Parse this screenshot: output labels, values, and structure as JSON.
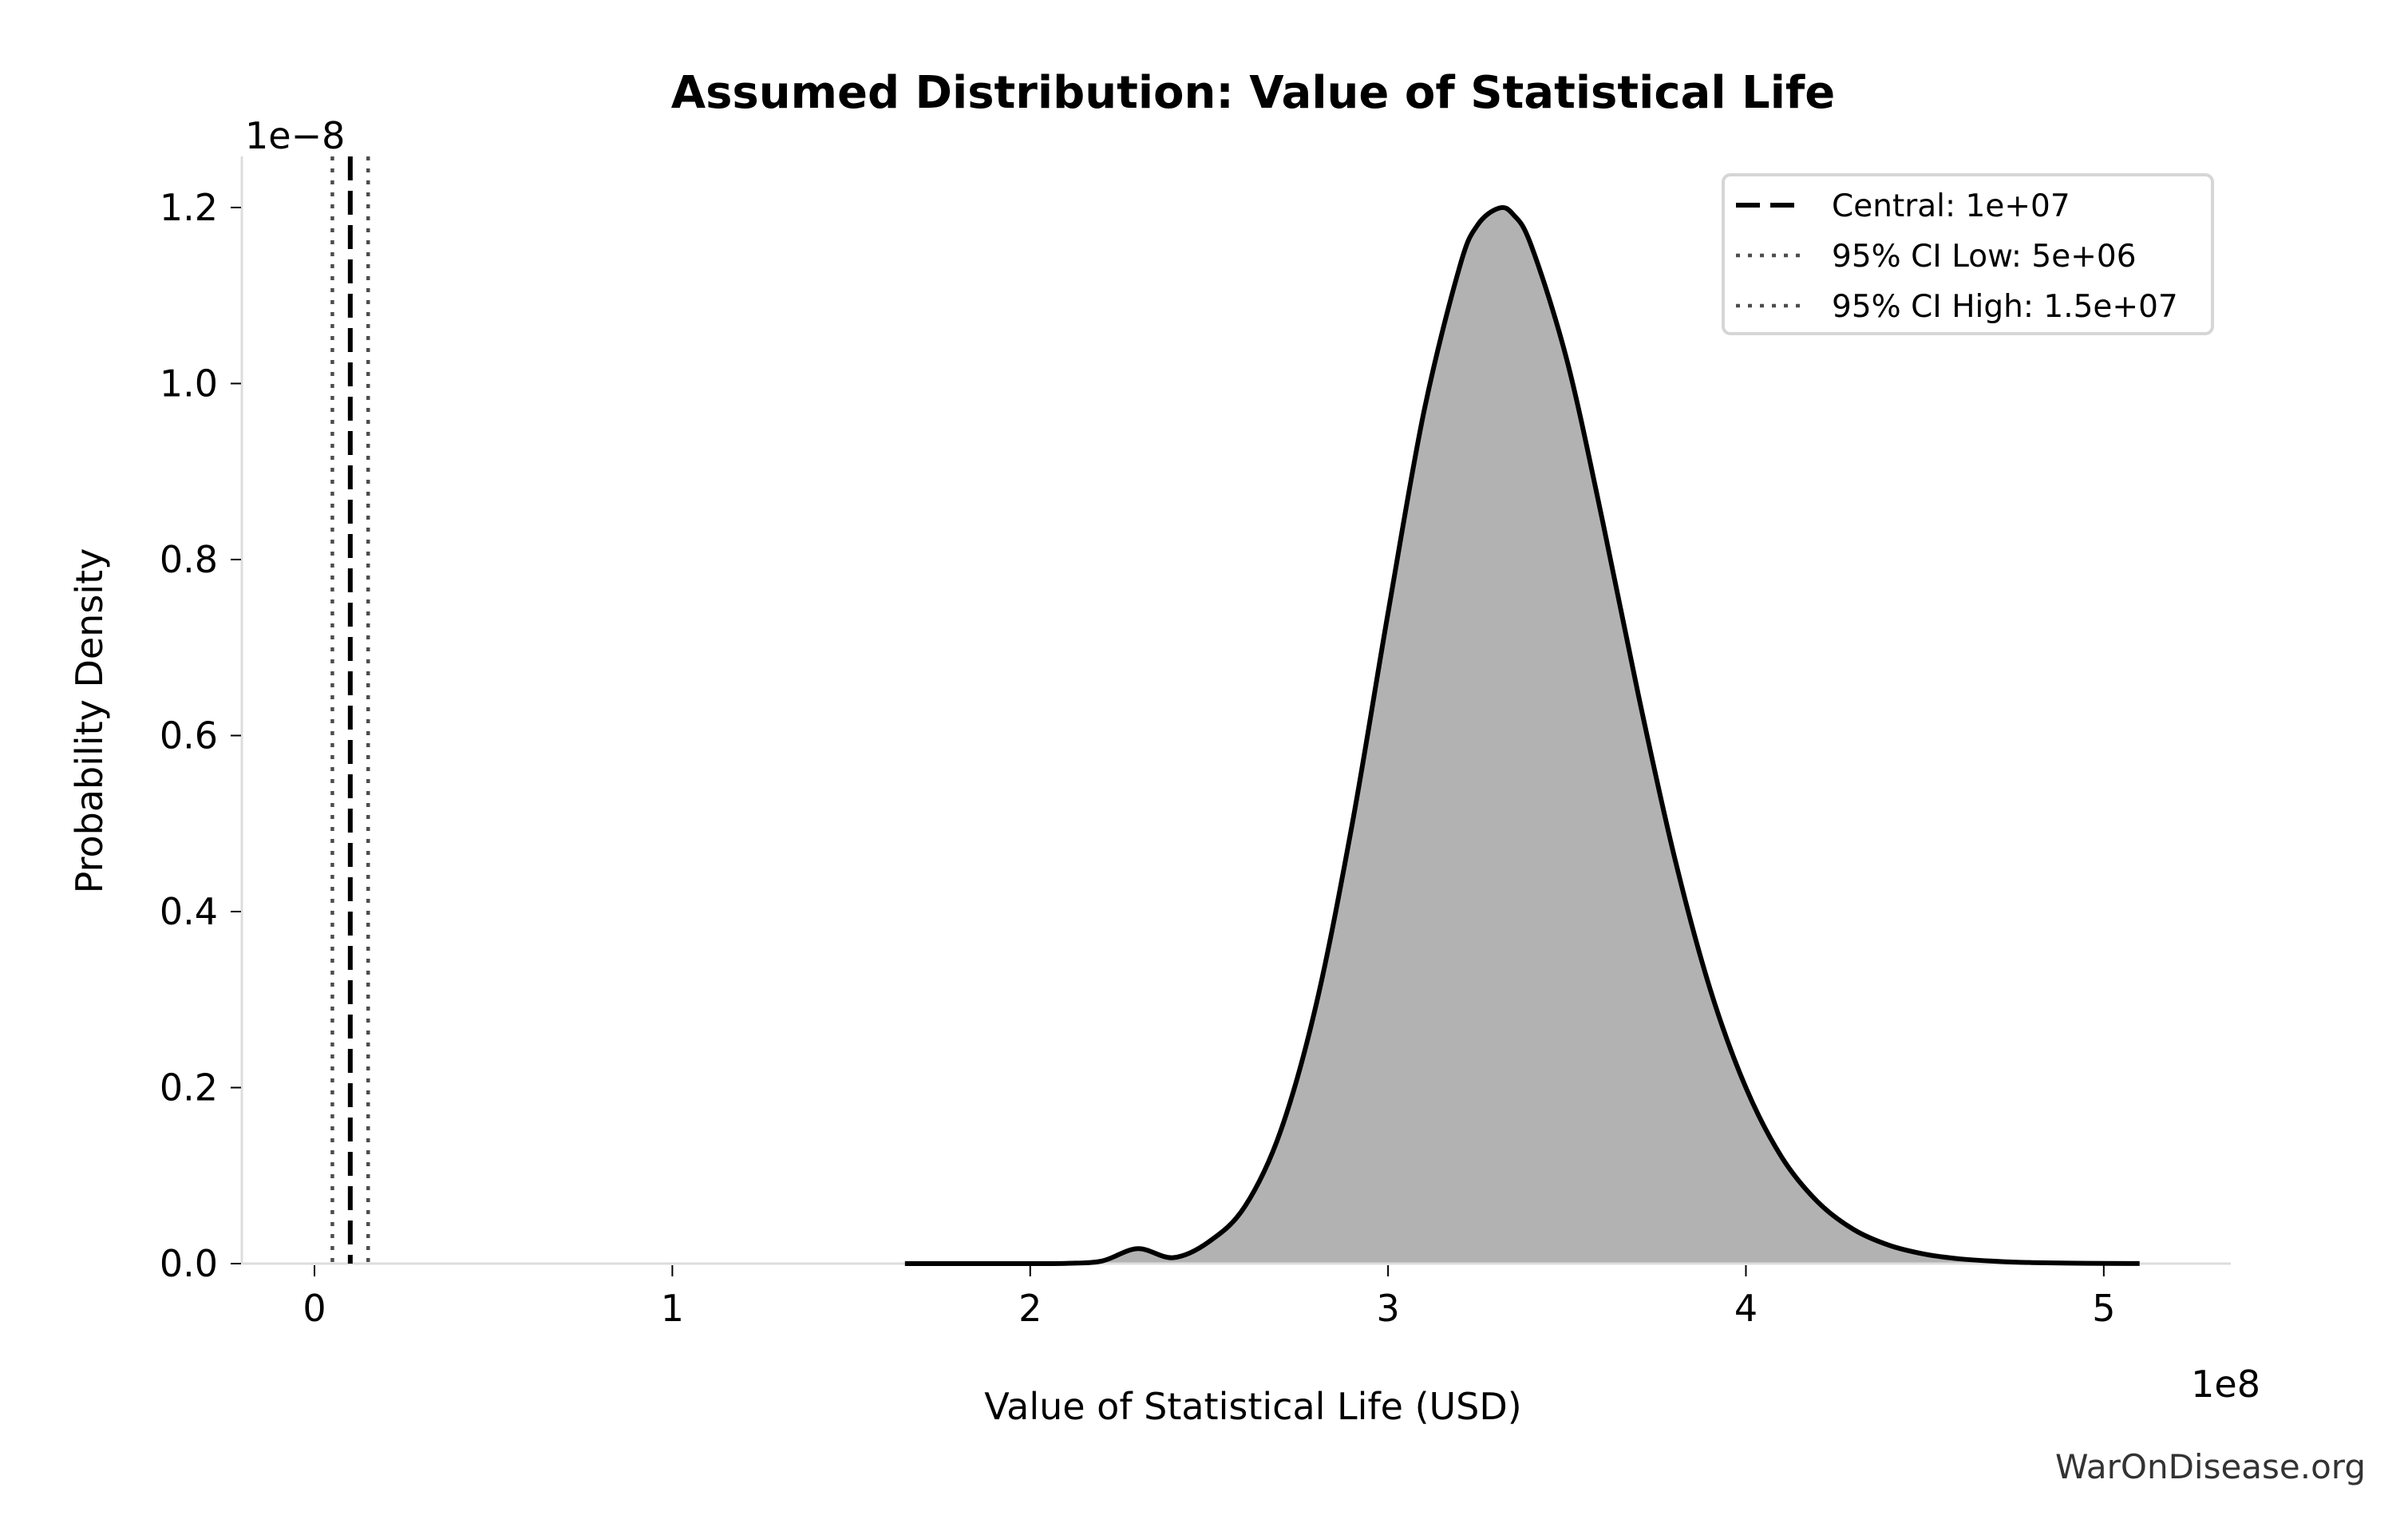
{
  "chart_data": {
    "type": "area",
    "title": "Assumed Distribution: Value of Statistical Life",
    "xlabel": "Value of Statistical Life (USD)",
    "ylabel": "Probability Density",
    "x_offset_label": "1e8",
    "y_offset_label": "1e−8",
    "x_scale": 100000000.0,
    "y_scale": 1e-08,
    "xlim": [
      -20300000.0,
      535500000.0
    ],
    "ylim": [
      0,
      1.258e-08
    ],
    "x_ticks": [
      0,
      100000000.0,
      200000000.0,
      300000000.0,
      400000000.0,
      500000000.0
    ],
    "x_tick_labels": [
      "0",
      "1",
      "2",
      "3",
      "4",
      "5"
    ],
    "y_ticks": [
      0,
      2e-09,
      4e-09,
      6e-09,
      8e-09,
      1e-08,
      1.2e-08
    ],
    "y_tick_labels": [
      "0.0",
      "0.2",
      "0.4",
      "0.6",
      "0.8",
      "1.0",
      "1.2"
    ],
    "grid": false,
    "legend_position": "top-right",
    "series": [
      {
        "name": "distribution",
        "color": "#000000",
        "fill_color": "#b2b2b2",
        "x": [
          165000000.0,
          190000000.0,
          200000000.0,
          210000000.0,
          220000000.0,
          230000000.0,
          240000000.0,
          250000000.0,
          260000000.0,
          270000000.0,
          280000000.0,
          290000000.0,
          300000000.0,
          310000000.0,
          320000000.0,
          325000000.0,
          331000000.0,
          335000000.0,
          340000000.0,
          350000000.0,
          360000000.0,
          370000000.0,
          380000000.0,
          390000000.0,
          400000000.0,
          410000000.0,
          420000000.0,
          430000000.0,
          440000000.0,
          450000000.0,
          460000000.0,
          470000000.0,
          480000000.0,
          495000000.0,
          510000000.0
        ],
        "y": [
          0,
          0,
          4e-16,
          3e-12,
          2.9e-11,
          1.7e-10,
          6.8e-11,
          2.5e-10,
          6.5e-10,
          1.509e-09,
          2.958e-09,
          5e-09,
          7.395e-09,
          9.674e-09,
          1.1326e-08,
          1.18e-08,
          1.1993e-08,
          1.192e-08,
          1.1568e-08,
          1.0263e-08,
          8.429e-09,
          6.45e-09,
          4.625e-09,
          3.12e-09,
          1.998e-09,
          1.21e-09,
          7.04e-10,
          3.9e-10,
          2.09e-10,
          1.07e-10,
          5.3e-11,
          2.6e-11,
          1.2e-11,
          4e-12,
          1e-12
        ]
      }
    ],
    "reference_lines": [
      {
        "label": "Central: 1e+07",
        "x": 10000000.0,
        "style": "dashed",
        "color": "#000000"
      },
      {
        "label": "95% CI Low: 5e+06",
        "x": 5000000.0,
        "style": "dotted",
        "color": "#4d4d4d"
      },
      {
        "label": "95% CI High: 1.5e+07",
        "x": 15000000.0,
        "style": "dotted",
        "color": "#4d4d4d"
      }
    ]
  },
  "watermark": "WarOnDisease.org",
  "colors": {
    "spine": "#dddddd",
    "legend_border": "#d6d6d6"
  }
}
